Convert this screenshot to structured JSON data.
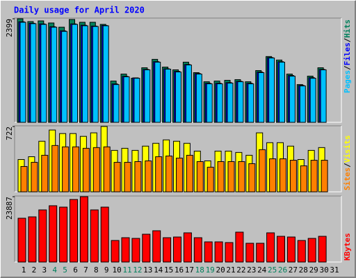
{
  "title": "Daily usage for April 2020",
  "legend_separator": "/",
  "chart_data": [
    {
      "type": "bar",
      "ylim": [
        0,
        2399
      ],
      "yticks": [
        2399
      ],
      "series": [
        {
          "name": "Hits",
          "color": "#00805c",
          "values": [
            2399,
            2334,
            2350,
            2302,
            2204,
            2383,
            2318,
            2318,
            2269,
            956,
            1118,
            1021,
            1264,
            1459,
            1280,
            1216,
            1394,
            1151,
            940,
            956,
            973,
            989,
            940,
            1199,
            1524,
            1443,
            1118,
            875,
            1070,
            1264,
            null
          ]
        },
        {
          "name": "Files",
          "color": "#0000ff",
          "values": [
            2330,
            2295,
            2280,
            2215,
            2120,
            2280,
            2250,
            2230,
            2245,
            890,
            1065,
            1030,
            1225,
            1405,
            1240,
            1180,
            1340,
            1130,
            905,
            905,
            920,
            950,
            905,
            1165,
            1500,
            1405,
            1085,
            855,
            1035,
            1225,
            null
          ]
        },
        {
          "name": "Pages",
          "color": "#00c0ff",
          "values": [
            2318,
            2286,
            2269,
            2204,
            2107,
            2269,
            2237,
            2221,
            2237,
            875,
            1054,
            1021,
            1216,
            1394,
            1232,
            1167,
            1329,
            1118,
            892,
            892,
            908,
            940,
            892,
            1151,
            1491,
            1394,
            1070,
            843,
            1021,
            1216,
            null
          ]
        }
      ]
    },
    {
      "type": "bar",
      "ylim": [
        0,
        722
      ],
      "yticks": [
        722
      ],
      "series": [
        {
          "name": "Visits",
          "color": "#ffff00",
          "values": [
            357,
            388,
            559,
            683,
            644,
            644,
            613,
            652,
            722,
            458,
            481,
            458,
            505,
            536,
            574,
            559,
            536,
            450,
            342,
            450,
            450,
            435,
            404,
            652,
            543,
            543,
            505,
            357,
            458,
            489,
            null
          ]
        },
        {
          "name": "Sites",
          "color": "#ff8000",
          "values": [
            280,
            326,
            404,
            512,
            497,
            497,
            481,
            489,
            497,
            326,
            326,
            334,
            342,
            388,
            396,
            373,
            404,
            334,
            272,
            334,
            334,
            334,
            311,
            466,
            365,
            365,
            349,
            287,
            349,
            349,
            null
          ]
        }
      ]
    },
    {
      "type": "bar",
      "ylim": [
        0,
        23887
      ],
      "yticks": [
        23887
      ],
      "categories": [
        "1",
        "2",
        "3",
        "4",
        "5",
        "6",
        "7",
        "8",
        "9",
        "10",
        "11",
        "12",
        "13",
        "14",
        "15",
        "16",
        "17",
        "18",
        "19",
        "20",
        "21",
        "22",
        "23",
        "24",
        "25",
        "26",
        "27",
        "28",
        "29",
        "30",
        "31"
      ],
      "category_colors": [
        "#000000",
        "#000000",
        "#000000",
        "#00805c",
        "#00805c",
        "#000000",
        "#000000",
        "#000000",
        "#000000",
        "#000000",
        "#00805c",
        "#00805c",
        "#000000",
        "#000000",
        "#000000",
        "#000000",
        "#000000",
        "#00805c",
        "#00805c",
        "#000000",
        "#000000",
        "#000000",
        "#000000",
        "#000000",
        "#00805c",
        "#00805c",
        "#000000",
        "#000000",
        "#000000",
        "#000000",
        "#000000"
      ],
      "series": [
        {
          "name": "KBytes",
          "color": "#ff0000",
          "values": [
            16009,
            16518,
            19059,
            20584,
            20075,
            22871,
            23887,
            19059,
            20075,
            7878,
            8894,
            8640,
            10165,
            11435,
            8894,
            9148,
            10673,
            8894,
            7369,
            7369,
            7115,
            10927,
            6861,
            6861,
            10673,
            9402,
            9148,
            7878,
            8640,
            9402,
            null
          ]
        }
      ]
    }
  ]
}
